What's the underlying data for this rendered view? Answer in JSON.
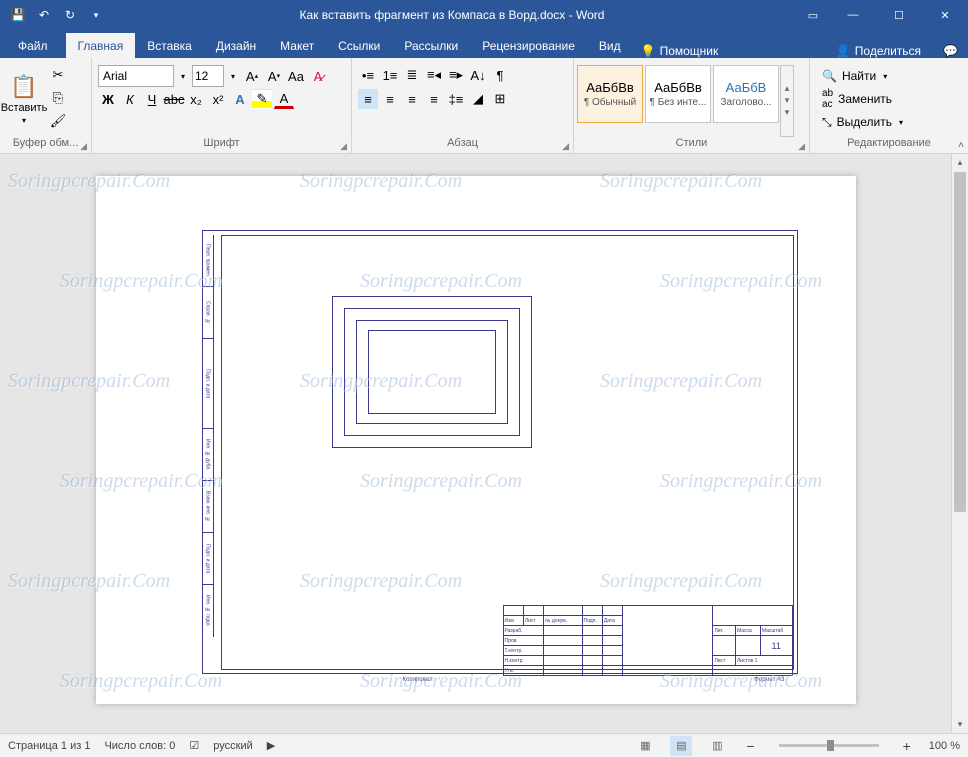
{
  "colors": {
    "primary": "#2b579a",
    "ribbon_bg": "#f3f3f3",
    "doc_bg": "#e6e6e6",
    "drawing_stroke": "#3a3a8c"
  },
  "title": "Как вставить фрагмент из Компаса в Ворд.docx  -  Word",
  "tabs": {
    "file": "Файл",
    "items": [
      "Главная",
      "Вставка",
      "Дизайн",
      "Макет",
      "Ссылки",
      "Рассылки",
      "Рецензирование",
      "Вид"
    ],
    "active_index": 0,
    "assistant": "Помощник",
    "share": "Поделиться"
  },
  "ribbon": {
    "clipboard": {
      "paste": "Вставить",
      "label": "Буфер обм..."
    },
    "font": {
      "name": "Arial",
      "size": "12",
      "label": "Шрифт"
    },
    "paragraph": {
      "label": "Абзац"
    },
    "styles": {
      "label": "Стили",
      "items": [
        {
          "preview": "АаБбВв",
          "name": "¶ Обычный",
          "color": "#000",
          "selected": true
        },
        {
          "preview": "АаБбВв",
          "name": "¶ Без инте...",
          "color": "#000",
          "selected": false
        },
        {
          "preview": "АаБбВ",
          "name": "Заголово...",
          "color": "#2e74b5",
          "selected": false
        }
      ]
    },
    "editing": {
      "find": "Найти",
      "replace": "Заменить",
      "select": "Выделить",
      "label": "Редактирование"
    }
  },
  "drawing": {
    "format": "Формат    A3",
    "copy": "Копировал",
    "page_num": "11",
    "titleblock_rows": [
      "Изм",
      "Лист",
      "№ докум.",
      "Подп.",
      "Дата",
      "Разраб.",
      "Пров.",
      "Т.контр.",
      "Н.контр.",
      "Утв.",
      "Лит.",
      "Масса",
      "Масштаб",
      "Лист",
      "Листов"
    ]
  },
  "status": {
    "page": "Страница 1 из 1",
    "words": "Число слов: 0",
    "lang": "русский",
    "zoom": "100 %"
  },
  "watermark": "Soringpcrepair.Com"
}
